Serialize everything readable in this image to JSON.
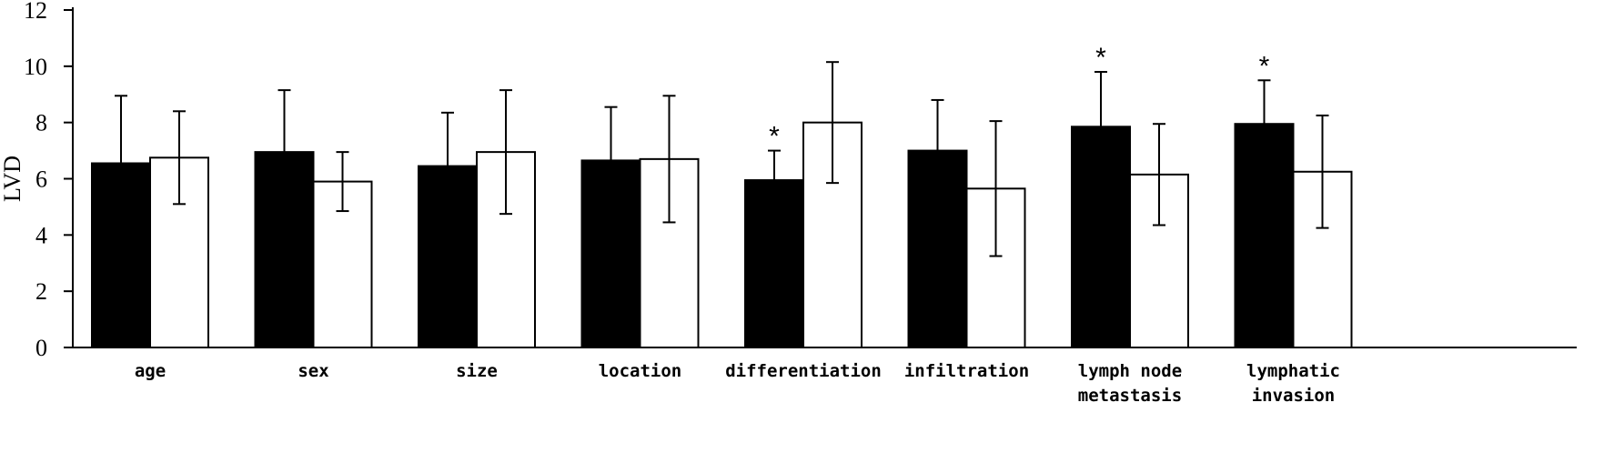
{
  "chart_data": {
    "type": "bar",
    "ylabel": "LVD",
    "xlabel": "",
    "ylim": [
      0,
      12
    ],
    "yticks": [
      0,
      2,
      4,
      6,
      8,
      10,
      12
    ],
    "categories": [
      [
        "age"
      ],
      [
        "sex"
      ],
      [
        "size"
      ],
      [
        "location"
      ],
      [
        "differentiation"
      ],
      [
        "infiltration"
      ],
      [
        "lymph node",
        "metastasis"
      ],
      [
        "lymphatic",
        "invasion"
      ]
    ],
    "series": [
      {
        "color": "#000000",
        "values": [
          6.55,
          6.95,
          6.45,
          6.65,
          5.95,
          7.0,
          7.85,
          7.95
        ],
        "error": [
          2.4,
          2.2,
          1.9,
          1.9,
          1.05,
          1.8,
          1.95,
          1.55
        ]
      },
      {
        "color": "#ffffff",
        "values": [
          6.75,
          5.9,
          6.95,
          6.7,
          8.0,
          5.65,
          6.15,
          6.25
        ],
        "error": [
          1.65,
          1.05,
          2.2,
          2.25,
          2.15,
          2.4,
          1.8,
          2.0
        ]
      }
    ],
    "significance_marker": "*",
    "significant_categories": [
      4,
      6,
      7
    ],
    "grid": false,
    "legend": "none"
  }
}
